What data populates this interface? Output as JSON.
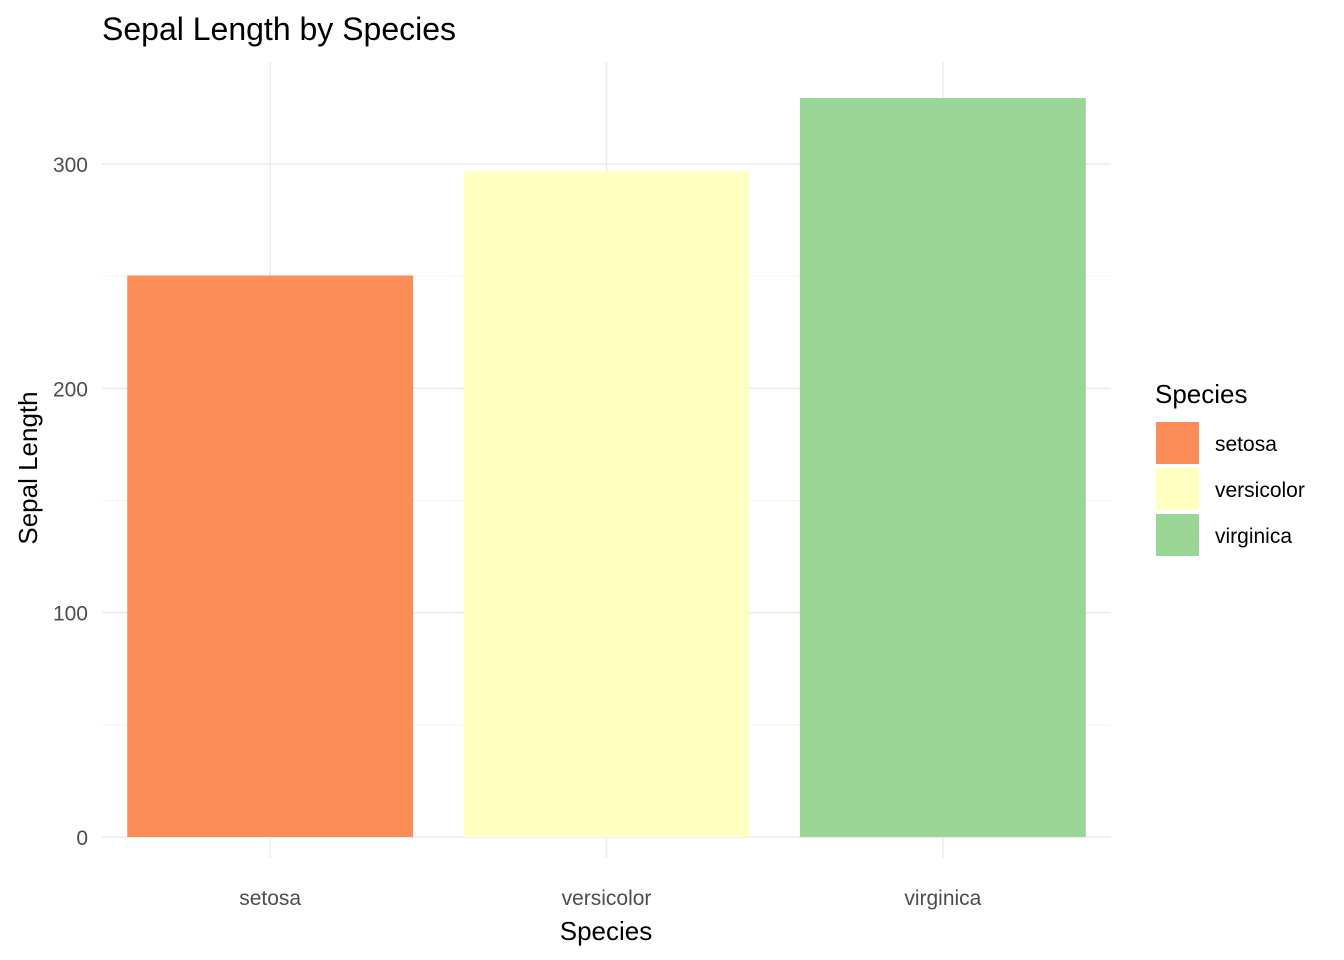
{
  "chart_data": {
    "type": "bar",
    "title": "Sepal Length by Species",
    "xlabel": "Species",
    "ylabel": "Sepal Length",
    "categories": [
      "setosa",
      "versicolor",
      "virginica"
    ],
    "values": [
      250.3,
      296.8,
      329.4
    ],
    "colors": [
      "#FC8D59",
      "#FFFFBF",
      "#99D594"
    ],
    "ylim": [
      0,
      345
    ],
    "yticks": [
      0,
      100,
      200,
      300
    ],
    "grid": true,
    "legend": {
      "title": "Species",
      "placement": "right",
      "entries": [
        "setosa",
        "versicolor",
        "virginica"
      ]
    }
  }
}
